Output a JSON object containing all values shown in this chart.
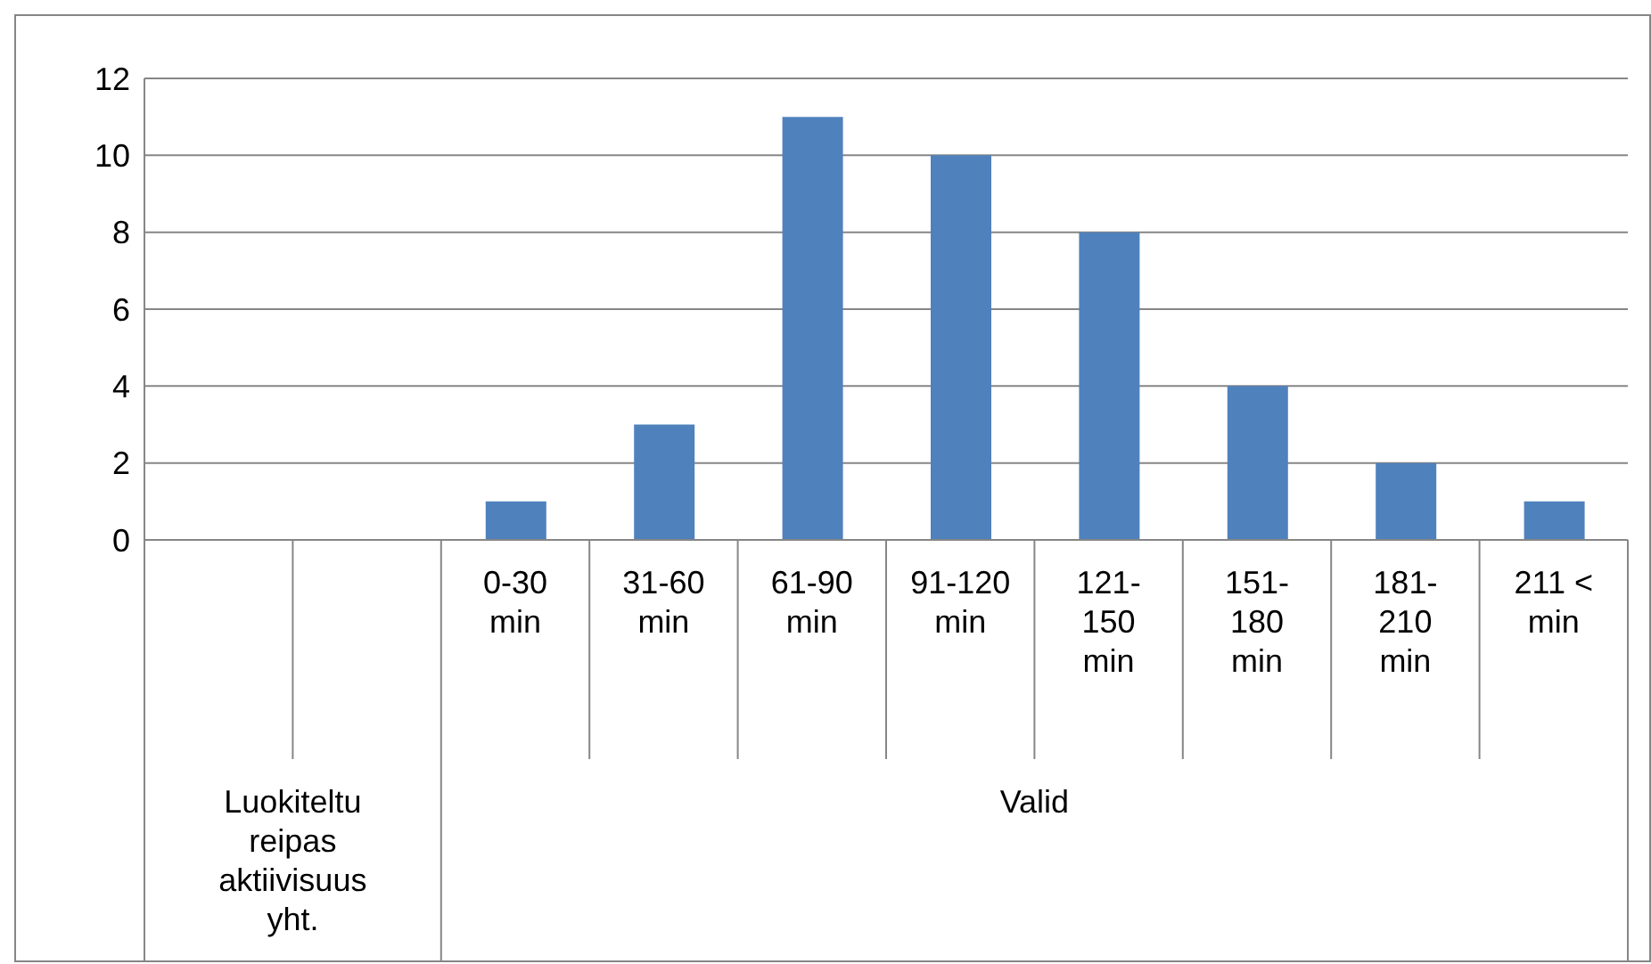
{
  "chart_data": {
    "type": "bar",
    "categories": [
      null,
      null,
      "0-30 min",
      "31-60 min",
      "61-90 min",
      "91-120 min",
      "121-150 min",
      "151-180 min",
      "181-210 min",
      "211 < min"
    ],
    "values": [
      null,
      null,
      1,
      3,
      11,
      10,
      8,
      4,
      2,
      1
    ],
    "color": "#4f81bd",
    "ylim": [
      0,
      12
    ],
    "yticks": [
      0,
      2,
      4,
      6,
      8,
      10,
      12
    ],
    "grid": "y",
    "annotations": [
      "Luokiteltu reipas aktiivisuus yht.",
      "Valid"
    ]
  }
}
